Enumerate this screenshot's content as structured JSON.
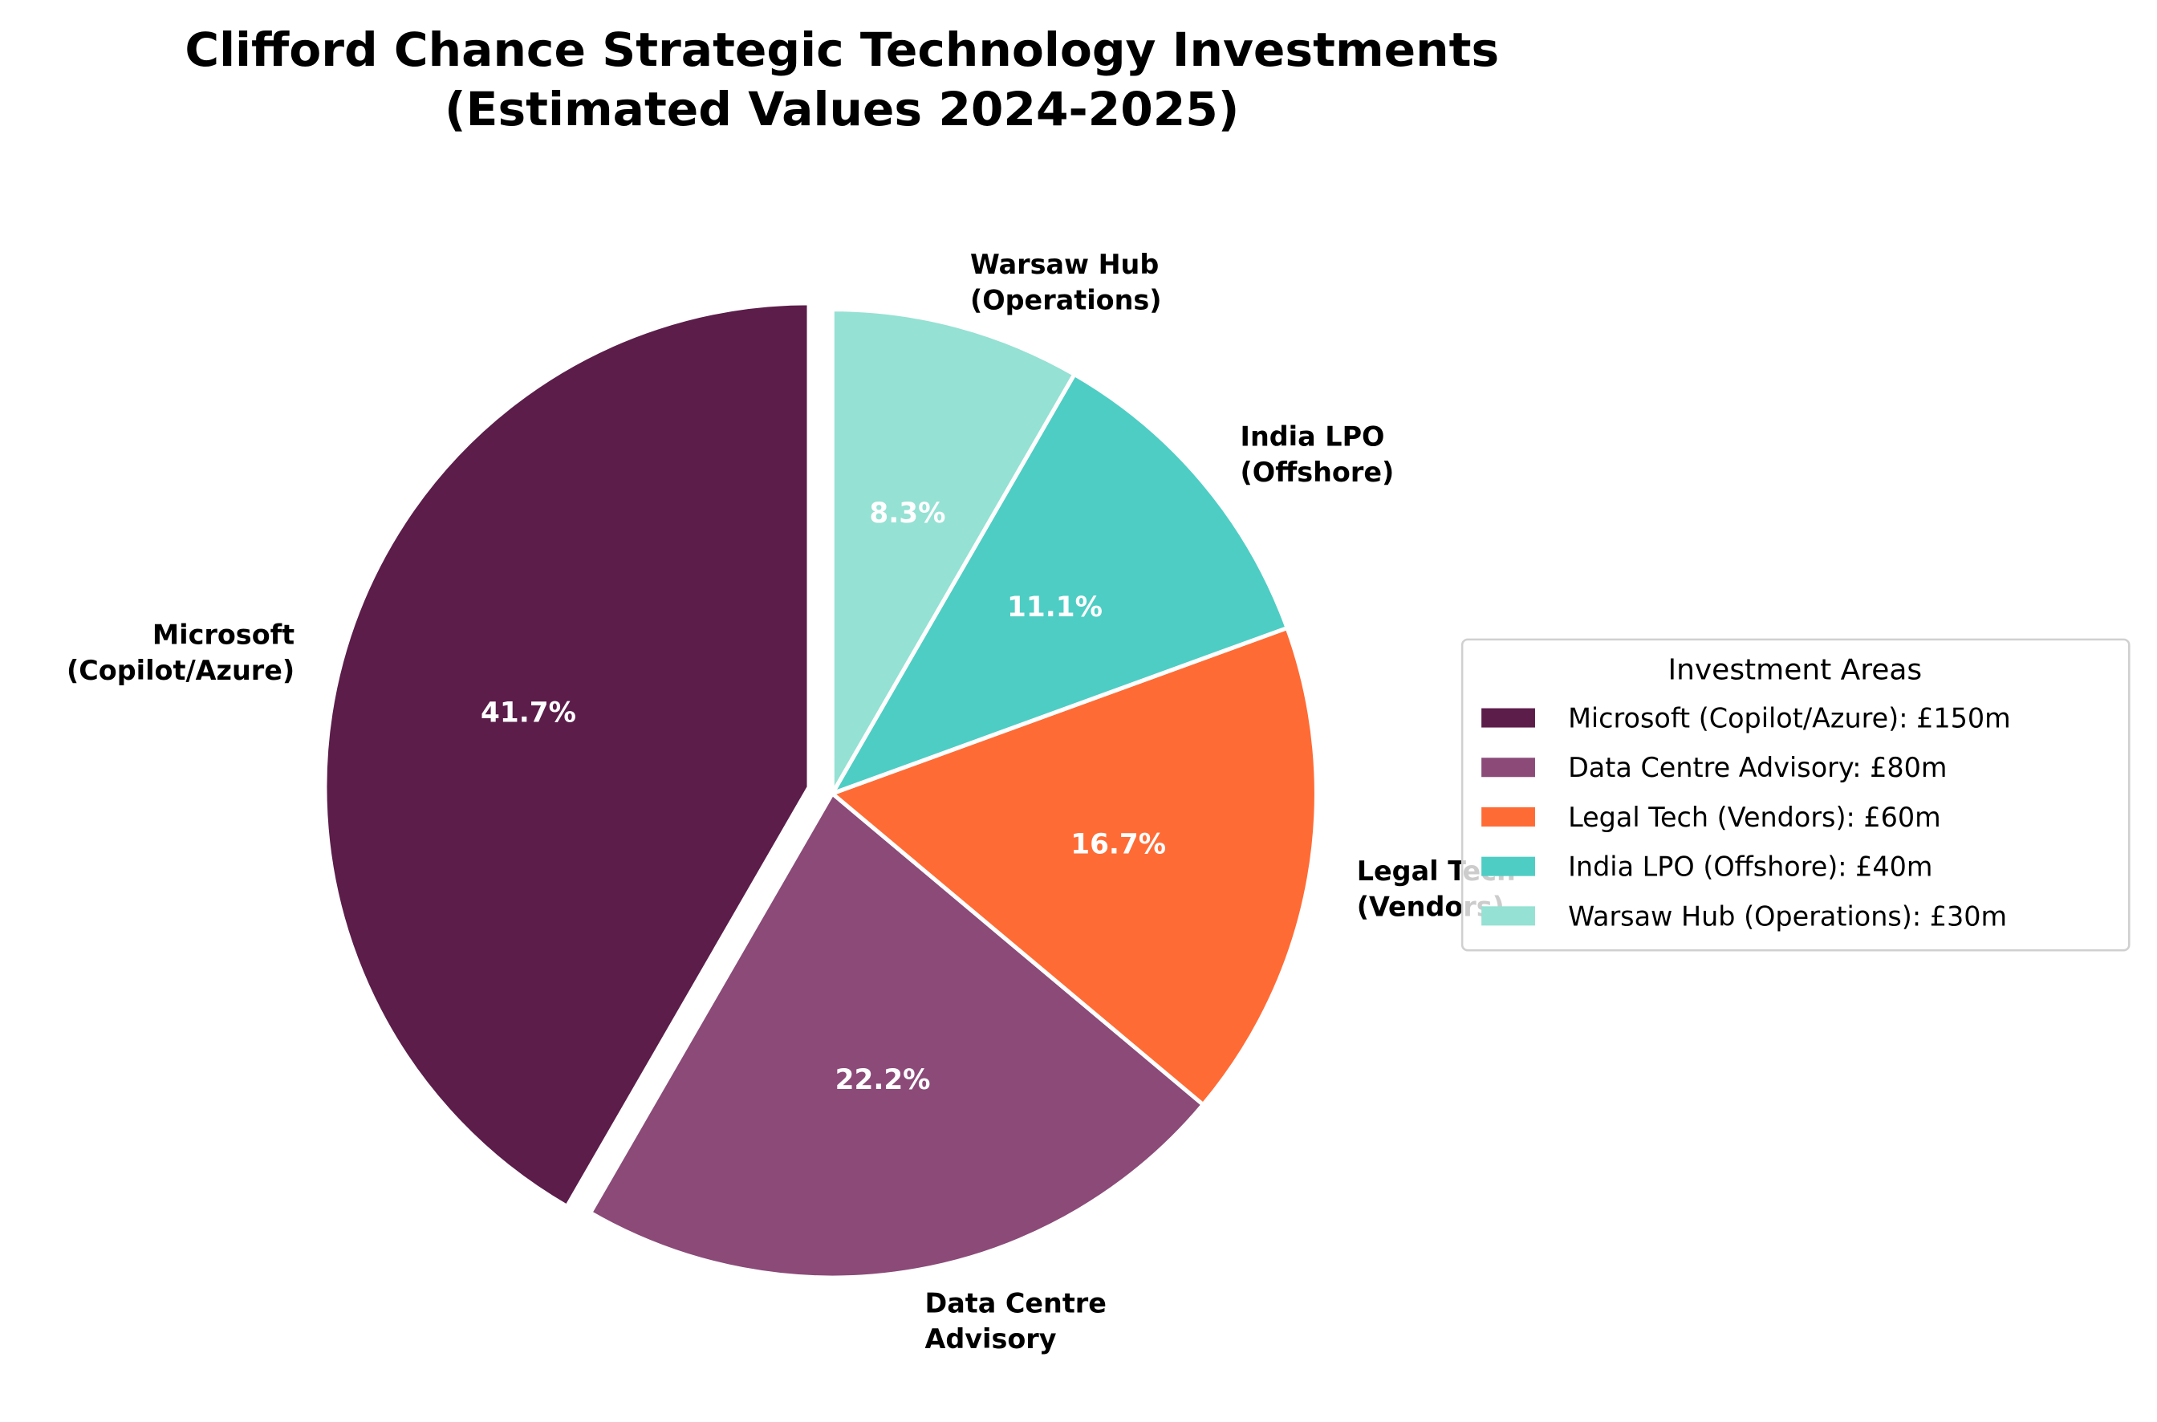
{
  "chart_data": {
    "type": "pie",
    "title": [
      "Clifford Chance Strategic Technology Investments",
      "(Estimated Values 2024-2025)"
    ],
    "start_angle_deg": 90,
    "direction": "counterclockwise",
    "exploded": "Microsoft (Copilot/Azure)",
    "slices": [
      {
        "label": [
          "Microsoft",
          "(Copilot/Azure)"
        ],
        "value": 150,
        "pct": "41.7%",
        "color": "#5C1D4A",
        "legend": "Microsoft (Copilot/Azure): £150m"
      },
      {
        "label": [
          "Data Centre",
          "Advisory"
        ],
        "value": 80,
        "pct": "22.2%",
        "color": "#8B4A78",
        "legend": "Data Centre Advisory: £80m"
      },
      {
        "label": [
          "Legal Tech",
          "(Vendors)"
        ],
        "value": 60,
        "pct": "16.7%",
        "color": "#FF6B35",
        "legend": "Legal Tech (Vendors): £60m"
      },
      {
        "label": [
          "India LPO",
          "(Offshore)"
        ],
        "value": 40,
        "pct": "11.1%",
        "color": "#4ECDC4",
        "legend": "India LPO (Offshore): £40m"
      },
      {
        "label": [
          "Warsaw Hub",
          "(Operations)"
        ],
        "value": 30,
        "pct": "8.3%",
        "color": "#95E1D3",
        "legend": "Warsaw Hub (Operations): £30m"
      }
    ],
    "legend": {
      "title": "Investment Areas",
      "placement": "right"
    }
  }
}
